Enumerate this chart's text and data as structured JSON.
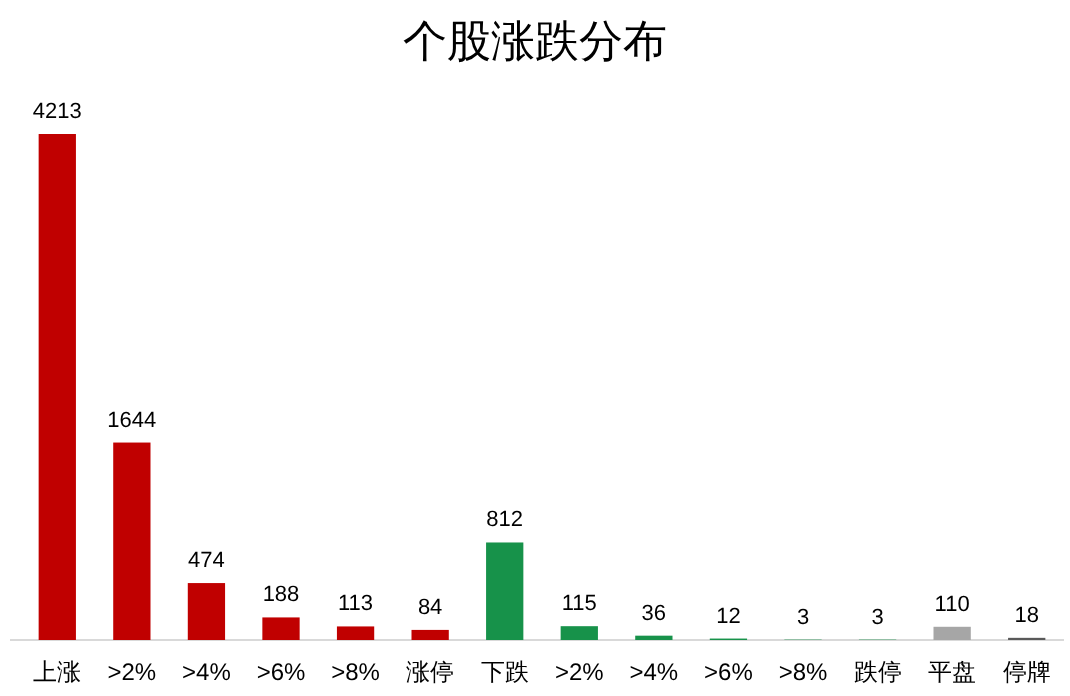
{
  "chart_data": {
    "type": "bar",
    "title": "个股涨跌分布",
    "categories": [
      "上涨",
      ">2%",
      ">4%",
      ">6%",
      ">8%",
      "涨停",
      "下跌",
      ">2%",
      ">4%",
      ">6%",
      ">8%",
      "跌停",
      "平盘",
      "停牌"
    ],
    "values": [
      4213,
      1644,
      474,
      188,
      113,
      84,
      812,
      115,
      36,
      12,
      3,
      3,
      110,
      18
    ],
    "colors": [
      "#c00000",
      "#c00000",
      "#c00000",
      "#c00000",
      "#c00000",
      "#c00000",
      "#17924a",
      "#17924a",
      "#17924a",
      "#17924a",
      "#17924a",
      "#17924a",
      "#a6a6a6",
      "#595959"
    ],
    "data_labels": true
  }
}
